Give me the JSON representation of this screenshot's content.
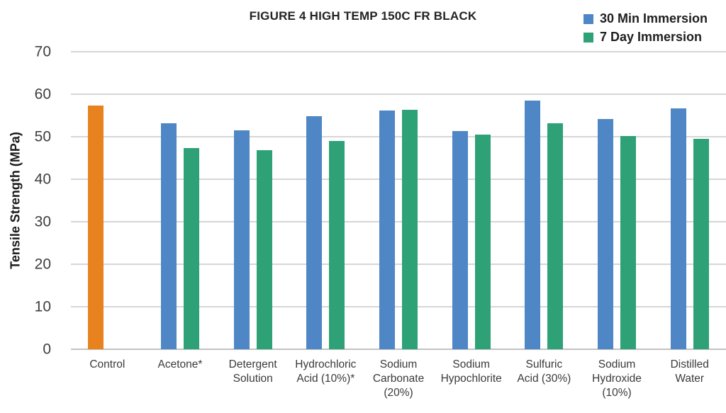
{
  "title": "FIGURE 4 HIGH TEMP 150C FR BLACK",
  "y_axis": {
    "title": "Tensile Strength (MPa)"
  },
  "colors": {
    "control_orange": "#E8821E",
    "series_blue": "#4E86C6",
    "series_green": "#2EA177",
    "gridline": "#D6D6D6",
    "text_dark": "#242424",
    "axis_text": "#3F3F3F"
  },
  "chart_data": {
    "type": "bar",
    "title": "FIGURE 4 HIGH TEMP 150C FR BLACK",
    "xlabel": "",
    "ylabel": "Tensile Strength (MPa)",
    "ylim": [
      0,
      70
    ],
    "yticks": [
      0,
      10,
      20,
      30,
      40,
      50,
      60,
      70
    ],
    "grid": true,
    "legend_position": "top-right",
    "categories": [
      "Control",
      "Acetone*",
      "Detergent Solution",
      "Hydrochloric Acid (10%)*",
      "Sodium Carbonate (20%)",
      "Sodium Hypochlorite",
      "Sulfuric Acid (30%)",
      "Sodium Hydroxide (10%)",
      "Distilled Water"
    ],
    "category_label_lines": [
      [
        "Control"
      ],
      [
        "Acetone*"
      ],
      [
        "Detergent",
        "Solution"
      ],
      [
        "Hydrochloric",
        "Acid (10%)*"
      ],
      [
        "Sodium",
        "Carbonate",
        "(20%)"
      ],
      [
        "Sodium",
        "Hypochlorite"
      ],
      [
        "Sulfuric",
        "Acid (30%)"
      ],
      [
        "Sodium",
        "Hydroxide",
        "(10%)"
      ],
      [
        "Distilled",
        "Water"
      ]
    ],
    "series": [
      {
        "name": "30 Min Immersion",
        "color": "#4E86C6",
        "values": [
          57.4,
          53.2,
          51.5,
          54.8,
          56.2,
          51.3,
          58.5,
          54.2,
          56.7
        ],
        "point_colors": {
          "0": "#E8821E"
        }
      },
      {
        "name": "7 Day Immersion",
        "color": "#2EA177",
        "values": [
          null,
          47.3,
          46.8,
          49.0,
          56.4,
          50.5,
          53.2,
          50.2,
          49.5
        ]
      }
    ]
  }
}
